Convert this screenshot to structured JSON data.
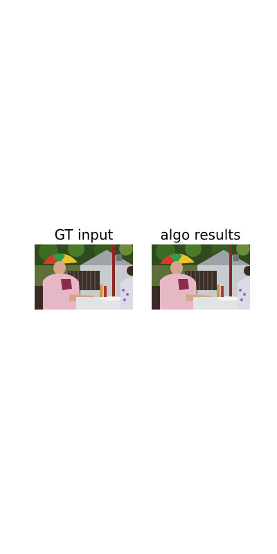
{
  "figure": {
    "panels": [
      {
        "title": "GT input",
        "image_name": "outdoor-patio-photo"
      },
      {
        "title": "algo results",
        "image_name": "outdoor-patio-photo"
      }
    ]
  }
}
